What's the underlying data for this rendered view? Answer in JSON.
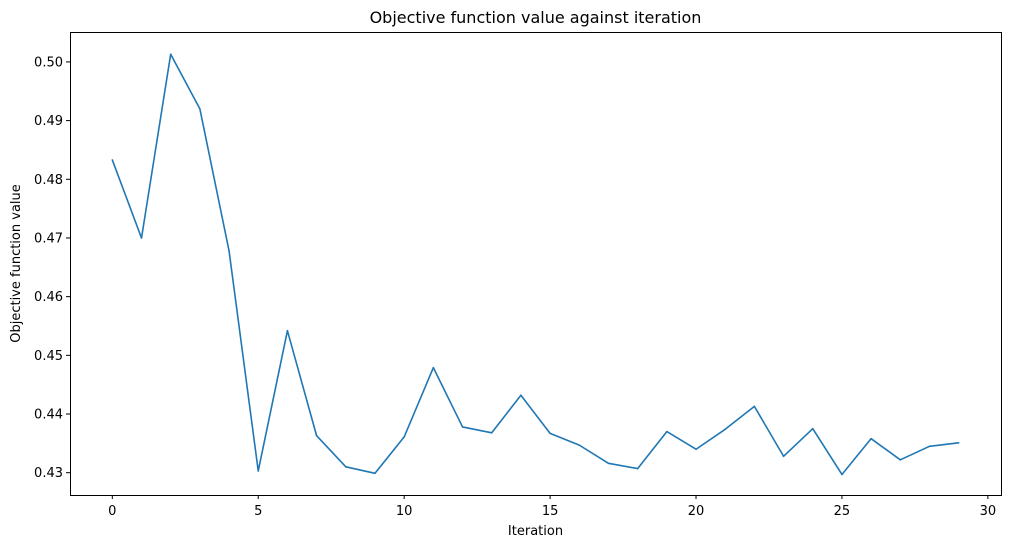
{
  "chart_data": {
    "type": "line",
    "title": "Objective function value against iteration",
    "xlabel": "Iteration",
    "ylabel": "Objective function value",
    "xlim": [
      -1.45,
      30.45
    ],
    "ylim": [
      0.4262,
      0.5051
    ],
    "xticks": [
      0,
      5,
      10,
      15,
      20,
      25,
      30
    ],
    "yticks": [
      0.43,
      0.44,
      0.45,
      0.46,
      0.47,
      0.48,
      0.49,
      0.5
    ],
    "xtick_labels": [
      "0",
      "5",
      "10",
      "15",
      "20",
      "25",
      "30"
    ],
    "ytick_labels": [
      "0.43",
      "0.44",
      "0.45",
      "0.46",
      "0.47",
      "0.48",
      "0.49",
      "0.50"
    ],
    "grid": false,
    "legend": "none",
    "colors": {
      "line": "#1f77b4"
    },
    "series": [
      {
        "x": [
          0,
          1,
          2,
          3,
          4,
          5,
          6,
          7,
          8,
          9,
          10,
          11,
          12,
          13,
          14,
          15,
          16,
          17,
          18,
          19,
          20,
          21,
          22,
          23,
          24,
          25,
          26,
          27,
          28,
          29
        ],
        "values": [
          0.4833,
          0.47,
          0.5013,
          0.492,
          0.4678,
          0.4303,
          0.4542,
          0.4363,
          0.431,
          0.4299,
          0.4361,
          0.4479,
          0.4378,
          0.4368,
          0.4432,
          0.4367,
          0.4347,
          0.4316,
          0.4307,
          0.437,
          0.434,
          0.4374,
          0.4413,
          0.4328,
          0.4375,
          0.4297,
          0.4358,
          0.4322,
          0.4345,
          0.4351
        ]
      }
    ]
  }
}
